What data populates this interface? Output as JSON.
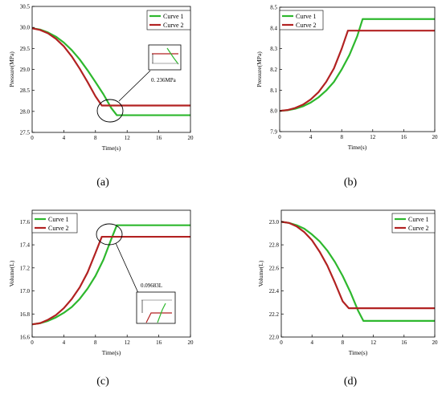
{
  "chart_data": [
    {
      "panel": "a",
      "caption": "(a)",
      "type": "line",
      "xlabel": "Time(s)",
      "ylabel": "Pressure(MPa)",
      "xlim": [
        0,
        20
      ],
      "ylim": [
        27.5,
        30.5
      ],
      "xticks": [
        0,
        4,
        8,
        12,
        16,
        20
      ],
      "yticks": [
        27.5,
        28.0,
        28.5,
        29.0,
        29.5,
        30.0,
        30.5
      ],
      "ytick_labels": [
        "27.5",
        "28.0",
        "28.5",
        "29.0",
        "29.5",
        "30.0",
        "30.5"
      ],
      "legend": "top-right",
      "annotation": "0. 236MPa",
      "series": [
        {
          "name": "Curve 1",
          "color": "#2eb82e",
          "x": [
            0,
            1,
            2,
            3,
            4,
            5,
            6,
            7,
            8,
            9,
            10,
            10.7,
            12,
            14,
            16,
            18,
            20
          ],
          "y": [
            29.98,
            29.95,
            29.88,
            29.78,
            29.64,
            29.46,
            29.24,
            28.98,
            28.7,
            28.41,
            28.08,
            27.91,
            27.91,
            27.91,
            27.91,
            27.91,
            27.91
          ]
        },
        {
          "name": "Curve 2",
          "color": "#b22222",
          "x": [
            0,
            1,
            2,
            3,
            4,
            5,
            6,
            7,
            8,
            8.8,
            10,
            12,
            14,
            16,
            18,
            20
          ],
          "y": [
            29.98,
            29.94,
            29.86,
            29.73,
            29.55,
            29.31,
            29.02,
            28.7,
            28.36,
            28.14,
            28.14,
            28.14,
            28.14,
            28.14,
            28.14,
            28.14
          ]
        }
      ]
    },
    {
      "panel": "b",
      "caption": "(b)",
      "type": "line",
      "xlabel": "Time(s)",
      "ylabel": "Pressure(MPa)",
      "xlim": [
        0,
        20
      ],
      "ylim": [
        7.9,
        8.5
      ],
      "xticks": [
        0,
        4,
        8,
        12,
        16,
        20
      ],
      "yticks": [
        7.9,
        8.0,
        8.1,
        8.2,
        8.3,
        8.4,
        8.5
      ],
      "ytick_labels": [
        "7.9",
        "8.0",
        "8.1",
        "8.2",
        "8.3",
        "8.4",
        "8.5"
      ],
      "legend": "top-left",
      "series": [
        {
          "name": "Curve 1",
          "color": "#2eb82e",
          "x": [
            0,
            1,
            2,
            3,
            4,
            5,
            6,
            7,
            8,
            9,
            10,
            10.7,
            12,
            14,
            16,
            18,
            20
          ],
          "y": [
            8.0,
            8.003,
            8.01,
            8.022,
            8.04,
            8.065,
            8.098,
            8.14,
            8.2,
            8.27,
            8.36,
            8.443,
            8.443,
            8.443,
            8.443,
            8.443,
            8.443
          ]
        },
        {
          "name": "Curve 2",
          "color": "#b22222",
          "x": [
            0,
            1,
            2,
            3,
            4,
            5,
            6,
            7,
            8,
            8.8,
            10,
            12,
            14,
            16,
            18,
            20
          ],
          "y": [
            8.0,
            8.004,
            8.014,
            8.03,
            8.055,
            8.09,
            8.14,
            8.205,
            8.3,
            8.387,
            8.387,
            8.387,
            8.387,
            8.387,
            8.387,
            8.387
          ]
        }
      ]
    },
    {
      "panel": "c",
      "caption": "(c)",
      "type": "line",
      "xlabel": "Time(s)",
      "ylabel": "Volume(L)",
      "xlim": [
        0,
        20
      ],
      "ylim": [
        16.6,
        17.7
      ],
      "xticks": [
        0,
        4,
        8,
        12,
        16,
        20
      ],
      "yticks": [
        16.6,
        16.8,
        17.0,
        17.2,
        17.4,
        17.6
      ],
      "ytick_labels": [
        "16.6",
        "16.8",
        "17.0",
        "17.2",
        "17.4",
        "17.6"
      ],
      "legend": "top-left",
      "annotation": "0.09683L",
      "series": [
        {
          "name": "Curve 1",
          "color": "#2eb82e",
          "x": [
            0,
            1,
            2,
            3,
            4,
            5,
            6,
            7,
            8,
            9,
            10,
            10.7,
            12,
            14,
            16,
            18,
            20
          ],
          "y": [
            16.71,
            16.72,
            16.74,
            16.77,
            16.81,
            16.86,
            16.93,
            17.02,
            17.13,
            17.27,
            17.45,
            17.57,
            17.57,
            17.57,
            17.57,
            17.57,
            17.57
          ]
        },
        {
          "name": "Curve 2",
          "color": "#b22222",
          "x": [
            0,
            1,
            2,
            3,
            4,
            5,
            6,
            7,
            8,
            8.8,
            10,
            12,
            14,
            16,
            18,
            20
          ],
          "y": [
            16.71,
            16.72,
            16.75,
            16.79,
            16.85,
            16.93,
            17.03,
            17.16,
            17.33,
            17.47,
            17.47,
            17.47,
            17.47,
            17.47,
            17.47,
            17.47
          ]
        }
      ]
    },
    {
      "panel": "d",
      "caption": "(d)",
      "type": "line",
      "xlabel": "Time(s)",
      "ylabel": "Volume(L)",
      "xlim": [
        0,
        20
      ],
      "ylim": [
        22.0,
        23.1
      ],
      "xticks": [
        0,
        4,
        8,
        12,
        16,
        20
      ],
      "yticks": [
        22.0,
        22.2,
        22.4,
        22.6,
        22.8,
        23.0
      ],
      "ytick_labels": [
        "22.0",
        "22.2",
        "22.4",
        "22.6",
        "22.8",
        "23.0"
      ],
      "legend": "top-right",
      "series": [
        {
          "name": "Curve 1",
          "color": "#2eb82e",
          "x": [
            0,
            1,
            2,
            3,
            4,
            5,
            6,
            7,
            8,
            9,
            10,
            10.7,
            12,
            14,
            16,
            18,
            20
          ],
          "y": [
            23.0,
            22.99,
            22.97,
            22.94,
            22.89,
            22.83,
            22.75,
            22.65,
            22.53,
            22.39,
            22.23,
            22.14,
            22.14,
            22.14,
            22.14,
            22.14,
            22.14
          ]
        },
        {
          "name": "Curve 2",
          "color": "#b22222",
          "x": [
            0,
            1,
            2,
            3,
            4,
            5,
            6,
            7,
            8,
            8.8,
            10,
            12,
            14,
            16,
            18,
            20
          ],
          "y": [
            23.0,
            22.99,
            22.96,
            22.91,
            22.84,
            22.74,
            22.62,
            22.47,
            22.31,
            22.25,
            22.25,
            22.25,
            22.25,
            22.25,
            22.25,
            22.25
          ]
        }
      ]
    }
  ]
}
